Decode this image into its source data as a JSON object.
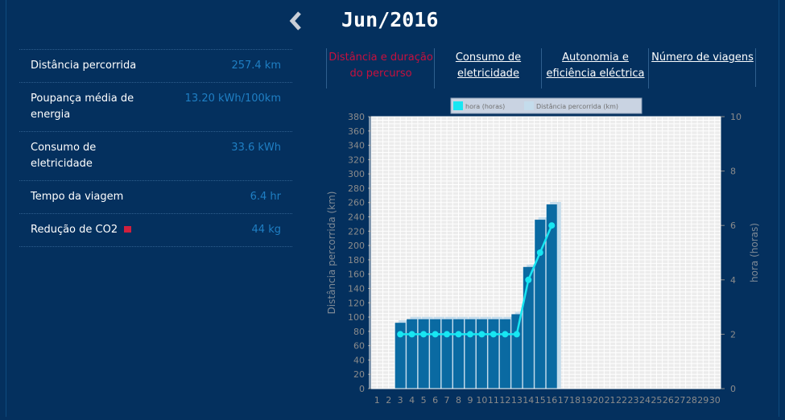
{
  "header": {
    "title": "Jun/2016"
  },
  "stats": [
    {
      "label": [
        "Distância percorrida"
      ],
      "value": "257.4 km"
    },
    {
      "label": [
        "Poupança média de",
        "energia"
      ],
      "value": "13.20 kWh/100km"
    },
    {
      "label": [
        "Consumo de",
        "eletricidade"
      ],
      "value": "33.6 kWh"
    },
    {
      "label": [
        "Tempo da viagem"
      ],
      "value": "6.4 hr"
    },
    {
      "label": [
        "Redução de CO2"
      ],
      "value": "44 kg",
      "flag": true
    }
  ],
  "tabs": [
    {
      "lines": [
        "Distância e duração",
        "do percurso"
      ],
      "active": true
    },
    {
      "lines": [
        "Consumo de",
        "eletricidade"
      ],
      "active": false
    },
    {
      "lines": [
        "Autonomia e",
        "eficiência eléctrica"
      ],
      "active": false
    },
    {
      "lines": [
        "Número de viagens"
      ],
      "active": false
    }
  ],
  "colors": {
    "background": "#04305e",
    "accent_value": "#1f7fc4",
    "active_tab": "#c8103e",
    "bar_dark": "#0a6aa2",
    "bar_light": "#c4dcec",
    "line": "#18e6f2"
  },
  "chart_data": {
    "type": "bar",
    "legend": [
      "hora (horas)",
      "Distância percorrida (km)"
    ],
    "ylabel_left": "Distância percorrida (km)",
    "ylabel_right": "hora (horas)",
    "ylim_left": [
      0,
      380
    ],
    "ylim_right": [
      0,
      10
    ],
    "left_ticks": [
      0,
      20,
      40,
      60,
      80,
      100,
      120,
      140,
      160,
      180,
      200,
      220,
      240,
      260,
      280,
      300,
      320,
      340,
      360,
      380
    ],
    "right_ticks": [
      0,
      2,
      4,
      6,
      8,
      10
    ],
    "categories": [
      "1",
      "2",
      "3",
      "4",
      "5",
      "6",
      "7",
      "8",
      "9",
      "10",
      "11",
      "12",
      "13",
      "14",
      "15",
      "16",
      "17",
      "18",
      "19",
      "20",
      "21",
      "22",
      "23",
      "24",
      "25",
      "26",
      "27",
      "28",
      "29",
      "30"
    ],
    "grid": true,
    "legend_position": "top",
    "series": [
      {
        "name": "Distância percorrida (km)",
        "axis": "left",
        "values": [
          0,
          0,
          92,
          97,
          97,
          97,
          97,
          97,
          97,
          97,
          97,
          97,
          104,
          170,
          236,
          257.4,
          0,
          0,
          0,
          0,
          0,
          0,
          0,
          0,
          0,
          0,
          0,
          0,
          0,
          0
        ]
      },
      {
        "name": "hora (horas)",
        "axis": "right",
        "values": [
          null,
          null,
          2,
          2,
          2,
          2,
          2,
          2,
          2,
          2,
          2,
          2,
          2,
          4,
          5,
          6,
          null,
          null,
          null,
          null,
          null,
          null,
          null,
          null,
          null,
          null,
          null,
          null,
          null,
          null
        ]
      }
    ]
  }
}
